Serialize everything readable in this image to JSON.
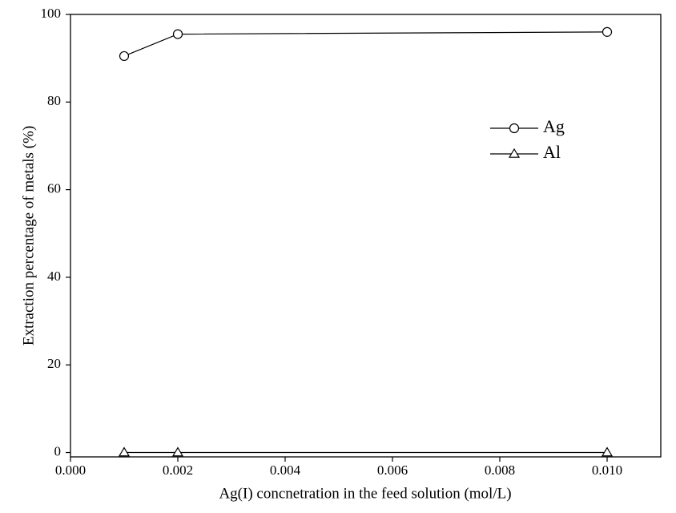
{
  "chart_data": {
    "type": "line",
    "x_label": "Ag(I) concnetration in the feed solution (mol/L)",
    "y_label": "Extraction percentage of metals (%)",
    "x": [
      0.001,
      0.002,
      0.01
    ],
    "series": [
      {
        "name": "Ag",
        "color": "#000000",
        "marker": "circle",
        "values": [
          90.5,
          95.5,
          96
        ]
      },
      {
        "name": "Al",
        "color": "#000000",
        "marker": "triangle",
        "values": [
          0,
          0,
          0
        ]
      }
    ],
    "xlim": [
      0,
      0.011
    ],
    "xticks": [
      {
        "value": 0,
        "label": "0.000"
      },
      {
        "value": 0.002,
        "label": "0.002"
      },
      {
        "value": 0.004,
        "label": "0.004"
      },
      {
        "value": 0.006,
        "label": "0.006"
      },
      {
        "value": 0.008,
        "label": "0.008"
      },
      {
        "value": 0.01,
        "label": "0.010"
      }
    ],
    "ylim": [
      -1,
      100
    ],
    "yticks": [
      0,
      20,
      40,
      60,
      80,
      100
    ],
    "grid": false,
    "legend": "upper right"
  }
}
